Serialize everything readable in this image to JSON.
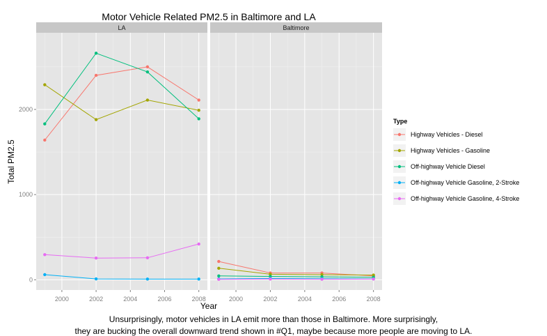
{
  "chart_data": {
    "type": "line",
    "title": "Motor Vehicle Related PM2.5 in Baltimore and LA",
    "xlabel": "Year",
    "ylabel": "Total PM2.5",
    "x": [
      1999,
      2002,
      2005,
      2008
    ],
    "xlim": [
      1998.5,
      2008.5
    ],
    "ylim": [
      -120,
      2900
    ],
    "xticks": [
      "2000",
      "2002",
      "2004",
      "2006",
      "2008"
    ],
    "yticks": [
      "0",
      "1000",
      "2000"
    ],
    "grid": true,
    "legend": {
      "title": "Type",
      "position": "right"
    },
    "colors": [
      "#F8766D",
      "#A3A500",
      "#00BF7D",
      "#00B0F6",
      "#E76BF3"
    ],
    "panels": [
      {
        "name": "LA",
        "series": [
          {
            "name": "Highway Vehicles - Diesel",
            "values": [
              1640,
              2400,
              2500,
              2110
            ]
          },
          {
            "name": "Highway Vehicles - Gasoline",
            "values": [
              2290,
              1880,
              2110,
              1990
            ]
          },
          {
            "name": "Off-highway Vehicle Diesel",
            "values": [
              1830,
              2660,
              2440,
              1890
            ]
          },
          {
            "name": "Off-highway Vehicle Gasoline, 2-Stroke",
            "values": [
              60,
              10,
              8,
              8
            ]
          },
          {
            "name": "Off-highway Vehicle Gasoline, 4-Stroke",
            "values": [
              295,
              255,
              258,
              420
            ]
          }
        ]
      },
      {
        "name": "Baltimore",
        "series": [
          {
            "name": "Highway Vehicles - Diesel",
            "values": [
              215,
              80,
              80,
              45
            ]
          },
          {
            "name": "Highway Vehicles - Gasoline",
            "values": [
              135,
              65,
              60,
              55
            ]
          },
          {
            "name": "Off-highway Vehicle Diesel",
            "values": [
              45,
              40,
              35,
              30
            ]
          },
          {
            "name": "Off-highway Vehicle Gasoline, 2-Stroke",
            "values": [
              10,
              15,
              12,
              10
            ]
          },
          {
            "name": "Off-highway Vehicle Gasoline, 4-Stroke",
            "values": [
              5,
              8,
              6,
              8
            ]
          }
        ]
      }
    ]
  },
  "caption": {
    "line1": "Unsurprisingly, motor vehicles in LA emit more than those in Baltimore. More surprisingly,",
    "line2": "they are bucking the overall downward trend shown in #Q1, maybe because more people are moving to LA."
  }
}
